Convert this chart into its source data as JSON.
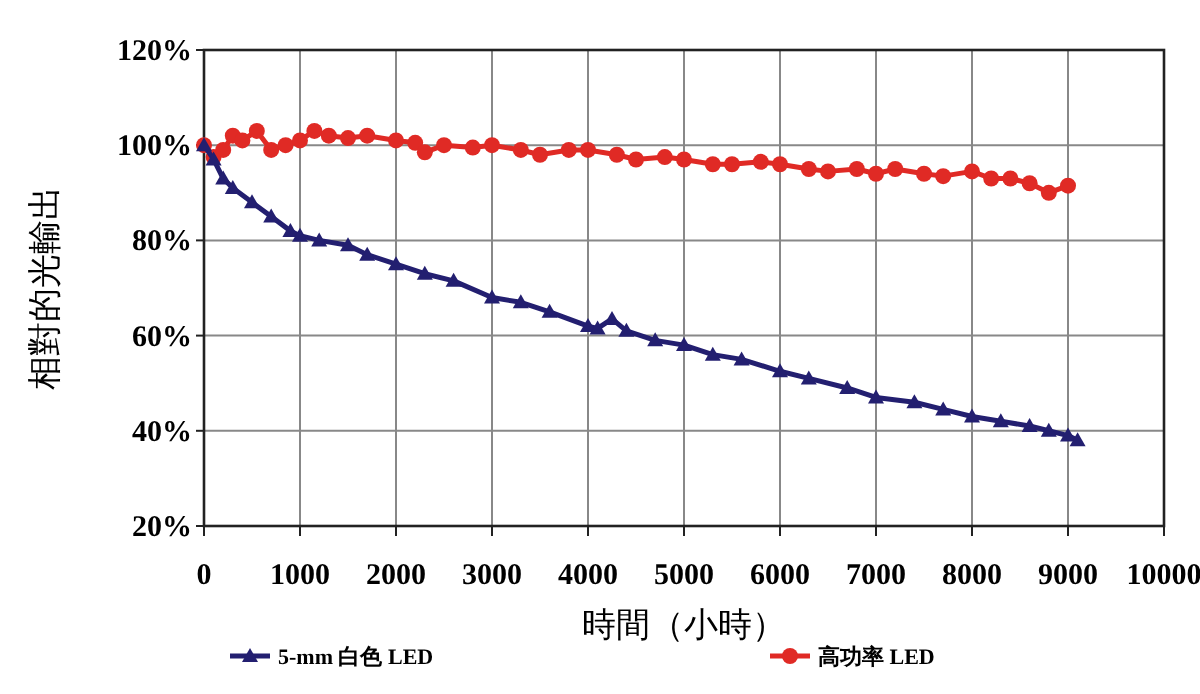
{
  "chart_data": {
    "type": "line",
    "xlabel": "時間（小時）",
    "ylabel": "相對的光輸出",
    "xlim": [
      0,
      10000
    ],
    "xticks": [
      0,
      1000,
      2000,
      3000,
      4000,
      5000,
      6000,
      7000,
      8000,
      9000,
      10000
    ],
    "ylim": [
      20,
      120
    ],
    "yticks": [
      {
        "value": 20,
        "label": "20%"
      },
      {
        "value": 40,
        "label": "40%"
      },
      {
        "value": 60,
        "label": "60%"
      },
      {
        "value": 80,
        "label": "80%"
      },
      {
        "value": 100,
        "label": "100%"
      },
      {
        "value": 120,
        "label": "120%"
      }
    ],
    "grid": true,
    "legend": "bottom",
    "series": [
      {
        "name": "5-mm 白色 LED",
        "color": "#231f70",
        "marker": "triangle",
        "x": [
          0,
          100,
          200,
          300,
          500,
          700,
          900,
          1000,
          1200,
          1500,
          1700,
          2000,
          2300,
          2600,
          3000,
          3300,
          3600,
          4000,
          4100,
          4250,
          4400,
          4700,
          5000,
          5300,
          5600,
          6000,
          6300,
          6700,
          7000,
          7400,
          7700,
          8000,
          8300,
          8600,
          8800,
          9000,
          9100
        ],
        "values": [
          100,
          97,
          93,
          91,
          88,
          85,
          82,
          81,
          80,
          79,
          77,
          75,
          73,
          71.5,
          68,
          67,
          65,
          62,
          61.5,
          63.5,
          61,
          59,
          58,
          56,
          55,
          52.5,
          51,
          49,
          47,
          46,
          44.5,
          43,
          42,
          41,
          40,
          39,
          38
        ]
      },
      {
        "name": "高功率  LED",
        "color": "#e02a25",
        "marker": "circle",
        "x": [
          0,
          100,
          200,
          300,
          400,
          550,
          700,
          850,
          1000,
          1150,
          1300,
          1500,
          1700,
          2000,
          2200,
          2300,
          2500,
          2800,
          3000,
          3300,
          3500,
          3800,
          4000,
          4300,
          4500,
          4800,
          5000,
          5300,
          5500,
          5800,
          6000,
          6300,
          6500,
          6800,
          7000,
          7200,
          7500,
          7700,
          8000,
          8200,
          8400,
          8600,
          8800,
          9000
        ],
        "values": [
          100,
          97.5,
          99,
          102,
          101,
          103,
          99,
          100,
          101,
          103,
          102,
          101.5,
          102,
          101,
          100.5,
          98.5,
          100,
          99.5,
          100,
          99,
          98,
          99,
          99,
          98,
          97,
          97.5,
          97,
          96,
          96,
          96.5,
          96,
          95,
          94.5,
          95,
          94,
          95,
          94,
          93.5,
          94.5,
          93,
          93,
          92,
          90,
          91.5
        ]
      }
    ]
  }
}
